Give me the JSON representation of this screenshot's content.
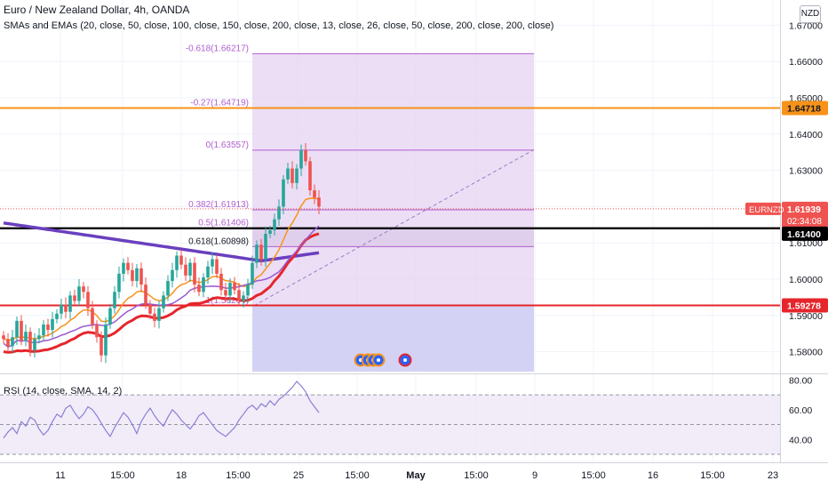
{
  "header": {
    "title": "Euro / New Zealand Dollar, 4h, OANDA",
    "indicators": "SMAs and EMAs (20, close, 50, close, 100, close, 150, close, 200, close, 13, close, 26, close, 50, close, 200, close, 200, close)",
    "currency_badge": "NZD"
  },
  "rsi_panel": {
    "title": "RSI (14, close, SMA, 14, 2)"
  },
  "colors": {
    "fib_fill": "#e6d3f2",
    "fib_line": "#b05fcf",
    "fib_bottom_fill": "#cfcdf3",
    "orange_line": "#f7931a",
    "red_line": "#e5262b",
    "black_line": "#000000",
    "purple_ma": "#6a3fbf",
    "red_ma": "#e5262b",
    "orange_ma": "#f7931a",
    "violet_ma": "#9b59d0",
    "bull": "#26a69a",
    "bear": "#ef5350",
    "rsi_line": "#8a7fd4",
    "rsi_band": "#ede7f6"
  },
  "chart_data": [
    {
      "type": "candlestick",
      "symbol": "EURNZD",
      "ylim": [
        1.575,
        1.675
      ],
      "y_ticks": [
        "1.58000",
        "1.59000",
        "1.60000",
        "1.61000",
        "1.62000",
        "1.63000",
        "1.64000",
        "1.65000",
        "1.66000",
        "1.67000"
      ],
      "x_ticks": [
        "11",
        "15:00",
        "18",
        "15:00",
        "25",
        "15:00",
        "May",
        "15:00",
        "9",
        "15:00",
        "16",
        "15:00",
        "23"
      ],
      "fib_levels": [
        {
          "label": "-0.618(1.66217)",
          "value": 1.66217
        },
        {
          "label": "-0.27(1.64719)",
          "value": 1.64719
        },
        {
          "label": "0(1.63557)",
          "value": 1.63557
        },
        {
          "label": "0.382(1.61913)",
          "value": 1.61913
        },
        {
          "label": "0.5(1.61406)",
          "value": 1.61406
        },
        {
          "label": "0.618(1.60898)",
          "value": 1.60898
        },
        {
          "label": "1(1.59264)",
          "value": 1.59264
        }
      ],
      "horizontal_lines": [
        {
          "name": "orange",
          "value": 1.64718,
          "label": "1.64718"
        },
        {
          "name": "black",
          "value": 1.614,
          "label": "1.61400"
        },
        {
          "name": "red",
          "value": 1.59278,
          "label": "1.59278"
        }
      ],
      "price_tag": {
        "symbol": "EURNZD",
        "price": "1.61939",
        "countdown": "02:34:08",
        "value": 1.61939
      },
      "closes": [
        1.5835,
        1.5815,
        1.584,
        1.5885,
        1.583,
        1.5855,
        1.5805,
        1.5835,
        1.5845,
        1.5875,
        1.586,
        1.589,
        1.5905,
        1.593,
        1.591,
        1.5955,
        1.594,
        1.598,
        1.5965,
        1.592,
        1.5875,
        1.584,
        1.579,
        1.5875,
        1.592,
        1.5965,
        1.6015,
        1.6045,
        1.6025,
        1.5995,
        1.603,
        1.5985,
        1.593,
        1.5905,
        1.5885,
        1.592,
        1.5955,
        1.5995,
        1.6025,
        1.6065,
        1.604,
        1.601,
        1.6045,
        1.5985,
        1.5965,
        1.6005,
        1.6035,
        1.6055,
        1.6015,
        1.597,
        1.5955,
        1.599,
        1.597,
        1.594,
        1.5955,
        1.5985,
        1.6045,
        1.6095,
        1.6055,
        1.6125,
        1.6135,
        1.6165,
        1.62,
        1.6275,
        1.6305,
        1.6265,
        1.6305,
        1.6355,
        1.6325,
        1.6245,
        1.6225,
        1.62
      ]
    },
    {
      "type": "line",
      "name": "RSI",
      "ylim": [
        27,
        82
      ],
      "y_ticks": [
        "40.00",
        "60.00",
        "80.00"
      ],
      "values": [
        41,
        45,
        48,
        44,
        52,
        49,
        55,
        53,
        47,
        43,
        46,
        52,
        57,
        55,
        61,
        63,
        58,
        54,
        57,
        62,
        60,
        56,
        51,
        46,
        42,
        48,
        53,
        58,
        55,
        50,
        44,
        52,
        57,
        61,
        56,
        52,
        49,
        55,
        60,
        57,
        53,
        50,
        47,
        51,
        56,
        58,
        54,
        50,
        46,
        44,
        42,
        45,
        48,
        53,
        57,
        61,
        63,
        60,
        64,
        62,
        66,
        63,
        67,
        69,
        72,
        75,
        79,
        76,
        72,
        66,
        62,
        58
      ]
    }
  ]
}
